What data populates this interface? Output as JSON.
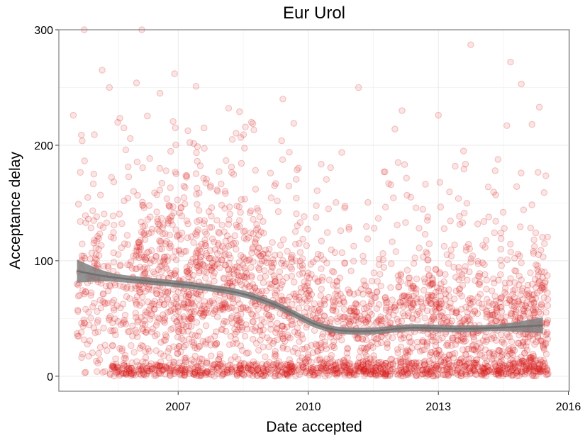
{
  "chart_data": {
    "type": "scatter",
    "title": "Eur Urol",
    "xlabel": "Date accepted",
    "ylabel": "Acceptance delay",
    "xlim": [
      "2004-04-01",
      "2016-01-10"
    ],
    "ylim": [
      -13,
      300
    ],
    "x_ticks": [
      {
        "label": "2007",
        "date": "2007-01-01"
      },
      {
        "label": "2010",
        "date": "2010-01-01"
      },
      {
        "label": "2013",
        "date": "2013-01-01"
      },
      {
        "label": "2016",
        "date": "2016-01-01"
      }
    ],
    "y_ticks": [
      0,
      100,
      200,
      300
    ],
    "grid": true,
    "point_color": "#e41a1c",
    "smooth_color": "#808080",
    "smooth_fit": {
      "x": [
        "2004-09-01",
        "2005-06-01",
        "2006-06-01",
        "2007-06-01",
        "2008-06-01",
        "2009-03-01",
        "2009-09-01",
        "2010-03-01",
        "2010-09-01",
        "2011-06-01",
        "2012-06-01",
        "2013-06-01",
        "2014-06-01",
        "2015-06-01"
      ],
      "y": [
        91,
        86,
        82,
        78,
        72,
        63,
        54,
        45,
        40,
        39,
        42,
        41,
        42,
        44
      ],
      "band_halfwidth": [
        10,
        4,
        3,
        3,
        3,
        3,
        3,
        3,
        3,
        3,
        3,
        3,
        3,
        7
      ]
    },
    "clusters": [
      {
        "start": "2004-09-01",
        "end": "2005-12-31",
        "center": 78,
        "spread": 42,
        "count": 230
      },
      {
        "start": "2006-01-01",
        "end": "2006-12-31",
        "center": 80,
        "spread": 42,
        "count": 300
      },
      {
        "start": "2007-01-01",
        "end": "2007-12-31",
        "center": 78,
        "spread": 40,
        "count": 300
      },
      {
        "start": "2008-01-01",
        "end": "2008-12-31",
        "center": 74,
        "spread": 40,
        "count": 280
      },
      {
        "start": "2009-01-01",
        "end": "2009-12-31",
        "center": 62,
        "spread": 36,
        "count": 230
      },
      {
        "start": "2010-01-01",
        "end": "2010-12-31",
        "center": 45,
        "spread": 30,
        "count": 200
      },
      {
        "start": "2011-01-01",
        "end": "2011-12-31",
        "center": 42,
        "spread": 30,
        "count": 210
      },
      {
        "start": "2012-01-01",
        "end": "2012-12-31",
        "center": 46,
        "spread": 32,
        "count": 240
      },
      {
        "start": "2013-01-01",
        "end": "2013-12-31",
        "center": 45,
        "spread": 32,
        "count": 240
      },
      {
        "start": "2014-01-01",
        "end": "2014-12-31",
        "center": 46,
        "spread": 32,
        "count": 250
      },
      {
        "start": "2015-01-01",
        "end": "2015-07-15",
        "center": 48,
        "spread": 32,
        "count": 170
      }
    ],
    "zero_band": {
      "start": "2005-06-01",
      "end": "2015-07-15",
      "center": 6,
      "spread": 4,
      "count": 700
    },
    "outliers": [
      {
        "x": "2004-11-01",
        "y": 300
      },
      {
        "x": "2005-04-01",
        "y": 265
      },
      {
        "x": "2005-06-01",
        "y": 250
      },
      {
        "x": "2006-03-01",
        "y": 300
      },
      {
        "x": "2006-01-15",
        "y": 254
      },
      {
        "x": "2006-08-01",
        "y": 245
      },
      {
        "x": "2006-12-01",
        "y": 262
      },
      {
        "x": "2007-06-01",
        "y": 251
      },
      {
        "x": "2008-03-01",
        "y": 232
      },
      {
        "x": "2008-06-01",
        "y": 229
      },
      {
        "x": "2009-06-01",
        "y": 240
      },
      {
        "x": "2009-09-01",
        "y": 219
      },
      {
        "x": "2011-03-01",
        "y": 250
      },
      {
        "x": "2012-03-01",
        "y": 230
      },
      {
        "x": "2012-01-01",
        "y": 214
      },
      {
        "x": "2013-01-01",
        "y": 226
      },
      {
        "x": "2013-10-01",
        "y": 287
      },
      {
        "x": "2013-08-01",
        "y": 195
      },
      {
        "x": "2014-09-01",
        "y": 272
      },
      {
        "x": "2014-12-01",
        "y": 253
      },
      {
        "x": "2015-03-01",
        "y": 218
      },
      {
        "x": "2015-05-01",
        "y": 233
      },
      {
        "x": "2014-08-01",
        "y": 217
      },
      {
        "x": "2004-08-01",
        "y": 226
      }
    ]
  }
}
